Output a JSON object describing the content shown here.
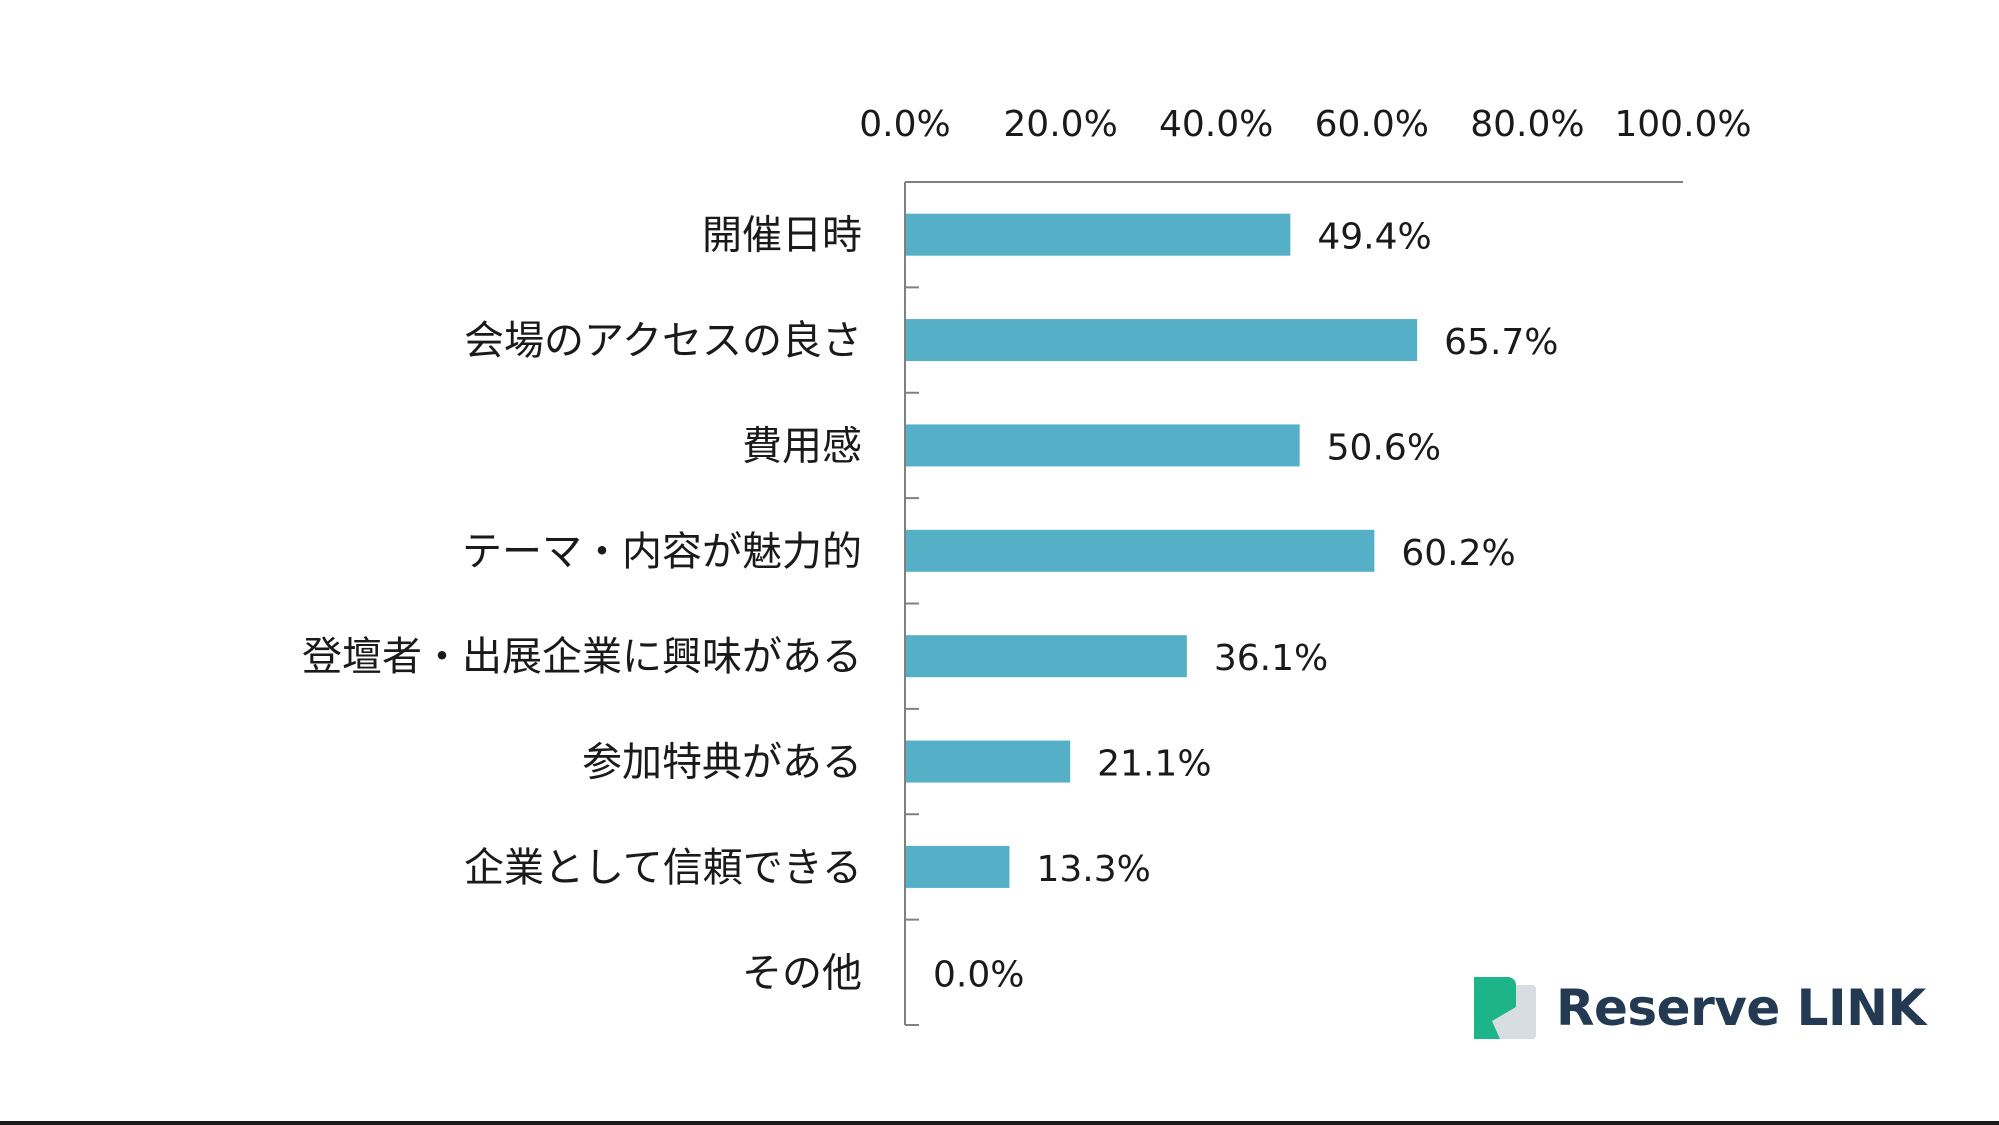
{
  "chart_data": {
    "type": "bar",
    "orientation": "horizontal",
    "categories": [
      "開催日時",
      "会場のアクセスの良さ",
      "費用感",
      "テーマ・内容が魅力的",
      "登壇者・出展企業に興味がある",
      "参加特典がある",
      "企業として信頼できる",
      "その他"
    ],
    "values": [
      49.4,
      65.7,
      50.6,
      60.2,
      36.1,
      21.1,
      13.3,
      0.0
    ],
    "value_labels": [
      "49.4%",
      "65.7%",
      "50.6%",
      "60.2%",
      "36.1%",
      "21.1%",
      "13.3%",
      "0.0%"
    ],
    "x_ticks": [
      "0.0%",
      "20.0%",
      "40.0%",
      "60.0%",
      "80.0%",
      "100.0%"
    ],
    "xlim": [
      0,
      100
    ],
    "x_axis_position": "top",
    "bar_color": "#54afc7",
    "grid": false,
    "legend": "none"
  },
  "brand": {
    "name": "Reserve LINK",
    "mark_color_primary": "#1db48a",
    "mark_color_secondary": "#d7dde3",
    "text_color": "#243a52"
  }
}
